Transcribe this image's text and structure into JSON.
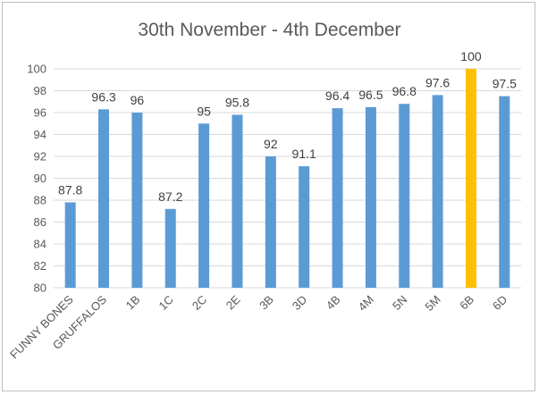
{
  "chart_data": {
    "type": "bar",
    "title": "30th November - 4th December",
    "categories": [
      "FUNNY BONES",
      "GRUFFALOS",
      "1B",
      "1C",
      "2C",
      "2E",
      "3B",
      "3D",
      "4B",
      "4M",
      "5N",
      "5M",
      "6B",
      "6D"
    ],
    "series": [
      {
        "values": [
          87.8,
          96.3,
          96,
          87.2,
          95,
          95.8,
          92,
          91.1,
          96.4,
          96.5,
          96.8,
          97.6,
          100,
          97.5
        ],
        "labels": [
          "87.8",
          "96.3",
          "96",
          "87.2",
          "95",
          "95.8",
          "92",
          "91.1",
          "96.4",
          "96.5",
          "96.8",
          "97.6",
          "100",
          "97.5"
        ]
      }
    ],
    "ylim": [
      80,
      100
    ],
    "yticks": [
      "80",
      "82",
      "84",
      "86",
      "88",
      "90",
      "92",
      "94",
      "96",
      "98",
      "100"
    ],
    "xlabel": "",
    "ylabel": "",
    "grid": true,
    "legend": "none",
    "colors": {
      "bar": "#5B9BD5",
      "highlight": "#FFC000",
      "highlight_category": "6B",
      "grid": "#d9d9d9"
    }
  }
}
